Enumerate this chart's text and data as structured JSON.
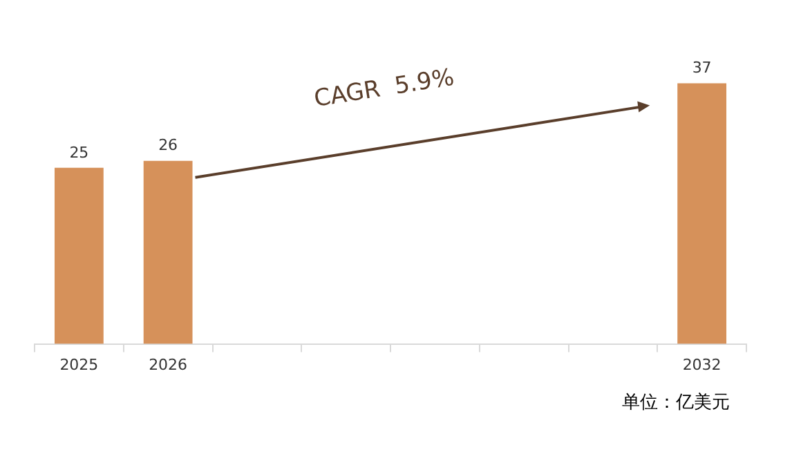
{
  "chart_data": {
    "type": "bar",
    "categories": [
      "2025",
      "2026",
      null,
      null,
      null,
      null,
      null,
      "2032"
    ],
    "values": [
      25,
      26,
      null,
      null,
      null,
      null,
      null,
      37
    ],
    "color": "#d6915a",
    "data_labels": true,
    "grid": false,
    "legend": false,
    "tick_labels": "x",
    "annotations": [
      "CAGR  5.9%",
      "单位：亿美元"
    ]
  }
}
